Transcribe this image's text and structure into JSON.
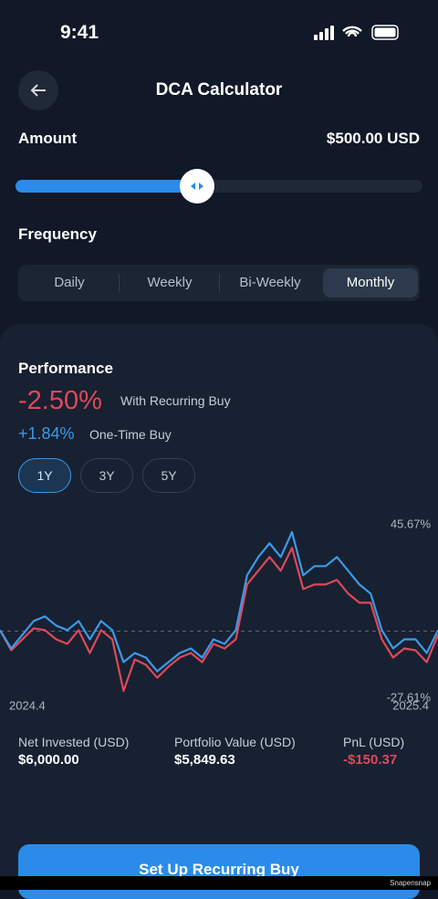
{
  "status_bar": {
    "time": "9:41"
  },
  "header": {
    "title": "DCA Calculator"
  },
  "amount": {
    "label": "Amount",
    "value": "$500.00 USD"
  },
  "frequency": {
    "label": "Frequency",
    "options": [
      "Daily",
      "Weekly",
      "Bi-Weekly",
      "Monthly"
    ],
    "selected": 3
  },
  "performance": {
    "title": "Performance",
    "recurring_return": "-2.50%",
    "one_time_return": "+1.84%",
    "ranges": [
      "1Y",
      "3Y",
      "5Y"
    ],
    "selected_range": 0
  },
  "chart_data": {
    "type": "line",
    "categories": [
      "2024.4",
      null,
      null,
      null,
      null,
      null,
      null,
      null,
      null,
      null,
      null,
      null,
      null,
      null,
      null,
      null,
      null,
      null,
      null,
      null,
      null,
      null,
      null,
      null,
      null,
      null,
      null,
      null,
      null,
      null,
      null,
      null,
      null,
      null,
      null,
      null,
      null,
      null,
      null,
      "2025.4"
    ],
    "series": [
      {
        "name": "With Recurring Buy",
        "color": "#e0485a",
        "values": [
          0.42,
          -8.86,
          -3.8,
          1.27,
          0.42,
          -3.8,
          -5.91,
          0.42,
          -10.13,
          0.42,
          -3.8,
          -27.61,
          -13.08,
          -15.61,
          -21.52,
          -16.46,
          -12.24,
          -10.13,
          -14.35,
          -5.91,
          -8.02,
          -3.8,
          21.52,
          27.85,
          34.18,
          27.85,
          38.4,
          19.41,
          21.52,
          21.52,
          23.63,
          17.3,
          13.08,
          13.08,
          -3.8,
          -12.24,
          -8.02,
          -8.86,
          -14.35,
          -1.69
        ]
      },
      {
        "name": "One-Time Buy",
        "color": "#3a9be8",
        "values": [
          0.42,
          -8.02,
          -1.69,
          4.64,
          6.75,
          2.53,
          0.42,
          4.64,
          -3.8,
          4.64,
          0.42,
          -14.35,
          -10.13,
          -12.24,
          -18.57,
          -14.35,
          -10.13,
          -8.02,
          -12.24,
          -3.8,
          -5.91,
          0.42,
          25.74,
          34.18,
          40.51,
          34.18,
          45.67,
          25.74,
          29.96,
          29.96,
          34.18,
          27.85,
          21.52,
          17.3,
          0.42,
          -8.02,
          -3.8,
          -3.8,
          -10.13,
          0.42
        ]
      }
    ],
    "ylim": [
      -27.61,
      45.67
    ],
    "yticks": [
      {
        "value": 45.67,
        "label": "45.67%"
      },
      {
        "value": -27.61,
        "label": "-27.61%"
      }
    ]
  },
  "stats": [
    {
      "label": "Net Invested (USD)",
      "value": "$6,000.00"
    },
    {
      "label": "Portfolio Value (USD)",
      "value": "$5,849.63"
    },
    {
      "label": "PnL (USD)",
      "value": "-$150.37"
    }
  ],
  "button": {
    "label": "Set Up Recurring Buy"
  },
  "watermark": "Snapensnap"
}
